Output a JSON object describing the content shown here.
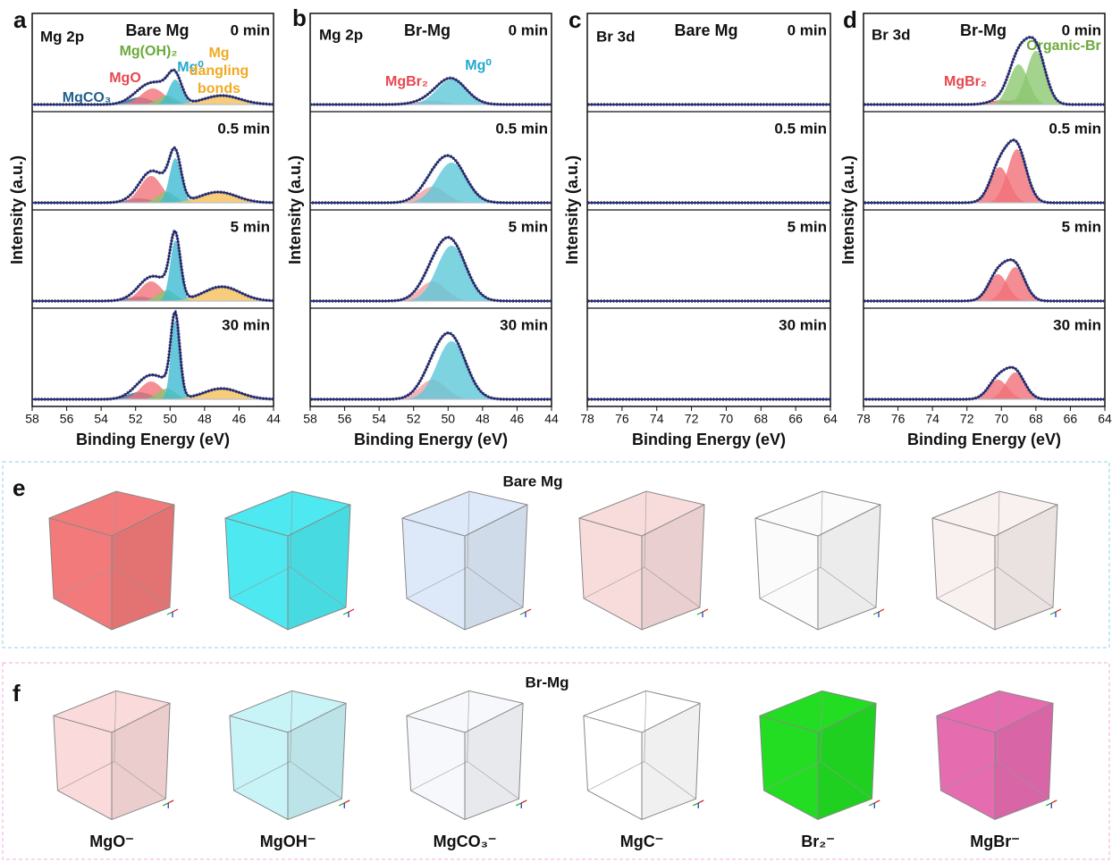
{
  "chart_data": [
    {
      "type": "line",
      "panel": "a",
      "core": "Mg 2p",
      "sample": "Bare Mg",
      "xlabel": "Binding Energy (eV)",
      "ylabel": "Intensity (a.u.)",
      "xlim": [
        58,
        44
      ],
      "xticks": [
        58,
        56,
        54,
        52,
        50,
        48,
        46,
        44
      ],
      "labels": [
        {
          "lines": [
            "MgCO₃"
          ],
          "color": "#1f5f8b"
        },
        {
          "lines": [
            "MgO"
          ],
          "color": "#e8474f"
        },
        {
          "lines": [
            "Mg(OH)₂"
          ],
          "color": "#6aaa3a"
        },
        {
          "lines": [
            "Mg⁰"
          ],
          "color": "#25a9d0"
        },
        {
          "lines": [
            "Mg",
            "dangling",
            "bonds"
          ],
          "color": "#f0aa22"
        }
      ],
      "traces": [
        {
          "name": "0 min",
          "components": [
            {
              "color": "#2b6a95",
              "center": 51.8,
              "height": 8,
              "width": 1.6
            },
            {
              "color": "#f0737a",
              "center": 51.0,
              "height": 18,
              "width": 1.6
            },
            {
              "color": "#8cc56a",
              "center": 50.2,
              "height": 10,
              "width": 1.2
            },
            {
              "color": "#3ebcd2",
              "center": 49.7,
              "height": 28,
              "width": 0.9
            },
            {
              "color": "#f5c15a",
              "center": 47.0,
              "height": 10,
              "width": 2.5
            }
          ]
        },
        {
          "name": "0.5 min",
          "components": [
            {
              "color": "#2b6a95",
              "center": 51.8,
              "height": 5,
              "width": 1.6
            },
            {
              "color": "#f0737a",
              "center": 51.1,
              "height": 30,
              "width": 1.5
            },
            {
              "color": "#8cc56a",
              "center": 50.2,
              "height": 12,
              "width": 1.2
            },
            {
              "color": "#3ebcd2",
              "center": 49.7,
              "height": 50,
              "width": 0.8
            },
            {
              "color": "#f5c15a",
              "center": 47.2,
              "height": 12,
              "width": 2.5
            }
          ]
        },
        {
          "name": "5 min",
          "components": [
            {
              "color": "#2b6a95",
              "center": 51.8,
              "height": 5,
              "width": 1.6
            },
            {
              "color": "#f0737a",
              "center": 51.1,
              "height": 22,
              "width": 1.5
            },
            {
              "color": "#8cc56a",
              "center": 50.2,
              "height": 12,
              "width": 1.2
            },
            {
              "color": "#3ebcd2",
              "center": 49.7,
              "height": 68,
              "width": 0.7
            },
            {
              "color": "#f5c15a",
              "center": 47.0,
              "height": 16,
              "width": 2.5
            }
          ]
        },
        {
          "name": "30 min",
          "components": [
            {
              "color": "#2b6a95",
              "center": 51.8,
              "height": 8,
              "width": 1.6
            },
            {
              "color": "#f0737a",
              "center": 51.1,
              "height": 20,
              "width": 1.5
            },
            {
              "color": "#8cc56a",
              "center": 50.2,
              "height": 12,
              "width": 1.2
            },
            {
              "color": "#3ebcd2",
              "center": 49.7,
              "height": 88,
              "width": 0.6
            },
            {
              "color": "#f5c15a",
              "center": 47.0,
              "height": 12,
              "width": 2.5
            }
          ]
        }
      ]
    },
    {
      "type": "line",
      "panel": "b",
      "core": "Mg 2p",
      "sample": "Br-Mg",
      "xlabel": "Binding Energy (eV)",
      "ylabel": "Intensity (a.u.)",
      "xlim": [
        58,
        44
      ],
      "xticks": [
        58,
        56,
        54,
        52,
        50,
        48,
        46,
        44
      ],
      "labels": [
        {
          "lines": [
            "MgBr₂"
          ],
          "color": "#e8474f"
        },
        {
          "lines": [
            "Mg⁰"
          ],
          "color": "#25a9d0"
        }
      ],
      "traces": [
        {
          "name": "0 min",
          "components": [
            {
              "color": "#f4a0a5",
              "center": 51.0,
              "height": 4,
              "width": 2.0
            },
            {
              "color": "#5cc8d8",
              "center": 49.8,
              "height": 28,
              "width": 2.0
            }
          ]
        },
        {
          "name": "0.5 min",
          "components": [
            {
              "color": "#f4a0a5",
              "center": 50.9,
              "height": 18,
              "width": 1.8
            },
            {
              "color": "#5cc8d8",
              "center": 49.8,
              "height": 45,
              "width": 2.0
            }
          ]
        },
        {
          "name": "5 min",
          "components": [
            {
              "color": "#f4a0a5",
              "center": 50.9,
              "height": 22,
              "width": 1.8
            },
            {
              "color": "#5cc8d8",
              "center": 49.8,
              "height": 62,
              "width": 2.0
            }
          ]
        },
        {
          "name": "30 min",
          "components": [
            {
              "color": "#f4a0a5",
              "center": 50.9,
              "height": 22,
              "width": 1.8
            },
            {
              "color": "#5cc8d8",
              "center": 49.8,
              "height": 65,
              "width": 2.0
            }
          ]
        }
      ]
    },
    {
      "type": "line",
      "panel": "c",
      "core": "Br 3d",
      "sample": "Bare Mg",
      "xlabel": "Binding Energy (eV)",
      "ylabel": "Intensity (a.u.)",
      "xlim": [
        78,
        64
      ],
      "xticks": [
        78,
        76,
        74,
        72,
        70,
        68,
        66,
        64
      ],
      "labels": [],
      "traces": [
        {
          "name": "0 min",
          "components": []
        },
        {
          "name": "0.5 min",
          "components": []
        },
        {
          "name": "5 min",
          "components": []
        },
        {
          "name": "30 min",
          "components": []
        }
      ]
    },
    {
      "type": "line",
      "panel": "d",
      "core": "Br 3d",
      "sample": "Br-Mg",
      "xlabel": "Binding Energy (eV)",
      "ylabel": "Intensity (a.u.)",
      "xlim": [
        78,
        64
      ],
      "xticks": [
        78,
        76,
        74,
        72,
        70,
        68,
        66,
        64
      ],
      "labels": [
        {
          "lines": [
            "MgBr₂"
          ],
          "color": "#e8474f"
        },
        {
          "lines": [
            "Organic-Br"
          ],
          "color": "#6aaa3a"
        }
      ],
      "traces": [
        {
          "name": "0 min",
          "components": [
            {
              "color": "#f07078",
              "center": 70.0,
              "height": 5,
              "width": 1.5
            },
            {
              "color": "#f07078",
              "center": 69.0,
              "height": 6,
              "width": 1.5
            },
            {
              "color": "#8cc870",
              "center": 69.0,
              "height": 45,
              "width": 1.3
            },
            {
              "color": "#8cc870",
              "center": 68.0,
              "height": 60,
              "width": 1.3
            }
          ]
        },
        {
          "name": "0.5 min",
          "components": [
            {
              "color": "#f07078",
              "center": 70.1,
              "height": 40,
              "width": 1.3
            },
            {
              "color": "#f07078",
              "center": 69.1,
              "height": 60,
              "width": 1.3
            }
          ]
        },
        {
          "name": "5 min",
          "components": [
            {
              "color": "#f07078",
              "center": 70.2,
              "height": 30,
              "width": 1.3
            },
            {
              "color": "#f07078",
              "center": 69.2,
              "height": 38,
              "width": 1.3
            }
          ]
        },
        {
          "name": "30 min",
          "components": [
            {
              "color": "#f07078",
              "center": 70.2,
              "height": 22,
              "width": 1.3
            },
            {
              "color": "#f07078",
              "center": 69.2,
              "height": 30,
              "width": 1.3
            }
          ]
        }
      ]
    }
  ],
  "images": [
    {
      "panel": "e",
      "title": "Bare Mg",
      "cubes": [
        {
          "color": "#f27a7a"
        },
        {
          "color": "#4de8f0"
        },
        {
          "color": "#dde9f8"
        },
        {
          "color": "#f8dcdc"
        },
        {
          "color": "#fbfbfb"
        },
        {
          "color": "#f9f0f0"
        }
      ]
    },
    {
      "panel": "f",
      "title": "Br-Mg",
      "cubes": [
        {
          "color": "#fadada",
          "label": "MgO⁻"
        },
        {
          "color": "#c8f3f7",
          "label": "MgOH⁻"
        },
        {
          "color": "#f6f8fb",
          "label": "MgCO₃⁻"
        },
        {
          "color": "#ffffff",
          "label": "MgC⁻"
        },
        {
          "color": "#22dd22",
          "label": "Br₂⁻"
        },
        {
          "color": "#e66cb0",
          "label": "MgBr⁻"
        }
      ]
    }
  ]
}
